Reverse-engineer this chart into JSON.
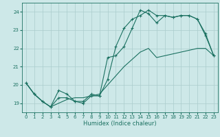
{
  "xlabel": "Humidex (Indice chaleur)",
  "xlim": [
    -0.5,
    23.5
  ],
  "ylim": [
    18.5,
    24.5
  ],
  "yticks": [
    19,
    20,
    21,
    22,
    23,
    24
  ],
  "xticks": [
    0,
    1,
    2,
    3,
    4,
    5,
    6,
    7,
    8,
    9,
    10,
    11,
    12,
    13,
    14,
    15,
    16,
    17,
    18,
    19,
    20,
    21,
    22,
    23
  ],
  "bg_color": "#cde8e8",
  "grid_color": "#aacccc",
  "line_color": "#1a7060",
  "line1_x": [
    0,
    1,
    2,
    3,
    4,
    5,
    6,
    7,
    8,
    9,
    10,
    11,
    12,
    13,
    14,
    15,
    16,
    17,
    18,
    19,
    20,
    21,
    22,
    23
  ],
  "line1_y": [
    20.1,
    19.5,
    19.1,
    18.8,
    19.7,
    19.5,
    19.1,
    19.1,
    19.5,
    19.4,
    20.3,
    22.1,
    23.1,
    23.6,
    23.8,
    24.1,
    23.8,
    23.8,
    23.7,
    23.8,
    23.8,
    23.6,
    22.7,
    21.6
  ],
  "line2_x": [
    0,
    1,
    2,
    3,
    4,
    5,
    6,
    7,
    8,
    9,
    10,
    11,
    12,
    13,
    14,
    15,
    16,
    17,
    18,
    19,
    20,
    21,
    22,
    23
  ],
  "line2_y": [
    20.1,
    19.5,
    19.1,
    18.8,
    19.3,
    19.3,
    19.1,
    19.0,
    19.4,
    19.4,
    21.5,
    21.6,
    22.1,
    23.1,
    24.1,
    23.9,
    23.4,
    23.8,
    23.7,
    23.8,
    23.8,
    23.6,
    22.8,
    21.6
  ],
  "line3_x": [
    0,
    1,
    2,
    3,
    4,
    5,
    6,
    7,
    8,
    9,
    10,
    11,
    12,
    13,
    14,
    15,
    16,
    17,
    18,
    19,
    20,
    21,
    22,
    23
  ],
  "line3_y": [
    20.1,
    19.5,
    19.1,
    18.8,
    19.0,
    19.2,
    19.3,
    19.3,
    19.4,
    19.5,
    20.0,
    20.5,
    21.0,
    21.4,
    21.8,
    22.0,
    21.5,
    21.6,
    21.7,
    21.8,
    21.9,
    22.0,
    22.0,
    21.6
  ]
}
